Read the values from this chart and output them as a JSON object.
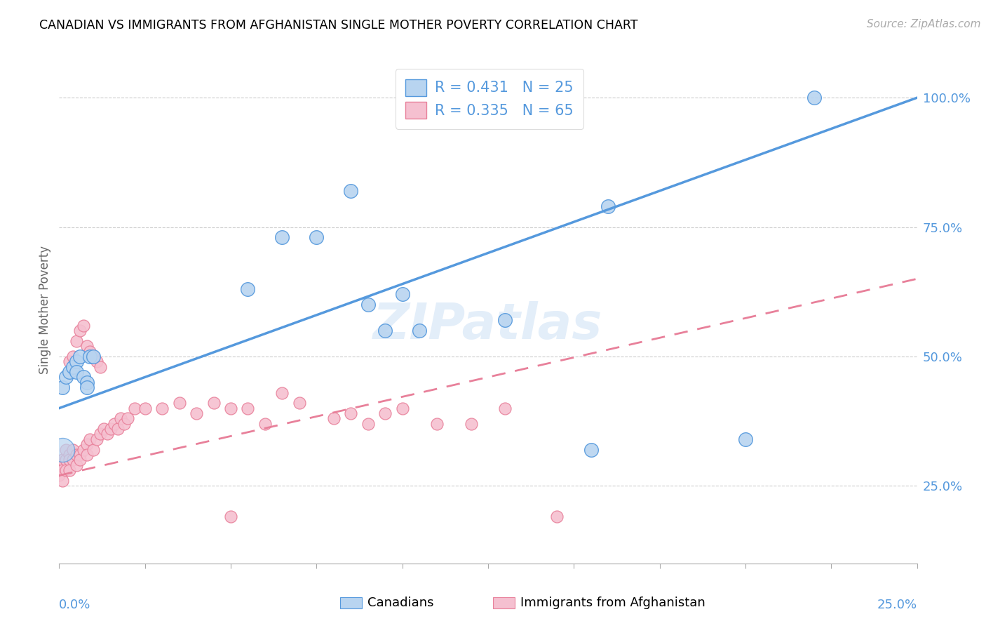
{
  "title": "CANADIAN VS IMMIGRANTS FROM AFGHANISTAN SINGLE MOTHER POVERTY CORRELATION CHART",
  "source": "Source: ZipAtlas.com",
  "ylabel": "Single Mother Poverty",
  "right_yticks": [
    "25.0%",
    "50.0%",
    "75.0%",
    "100.0%"
  ],
  "right_ytick_vals": [
    0.25,
    0.5,
    0.75,
    1.0
  ],
  "xmin": 0.0,
  "xmax": 0.25,
  "ymin": 0.1,
  "ymax": 1.08,
  "watermark": "ZIPatlas",
  "canadians_color": "#b8d4f0",
  "afghan_color": "#f5c0d0",
  "line_canadian_color": "#5599dd",
  "line_afghan_color": "#e8809a",
  "canadian_x": [
    0.001,
    0.002,
    0.003,
    0.004,
    0.005,
    0.006,
    0.055,
    0.065,
    0.075,
    0.085,
    0.09,
    0.095,
    0.1,
    0.105,
    0.13,
    0.155,
    0.16,
    0.2,
    0.22,
    0.005,
    0.007,
    0.008,
    0.008,
    0.009,
    0.01
  ],
  "canadian_y": [
    0.44,
    0.46,
    0.47,
    0.48,
    0.49,
    0.5,
    0.63,
    0.73,
    0.73,
    0.82,
    0.6,
    0.55,
    0.62,
    0.55,
    0.57,
    0.32,
    0.79,
    0.34,
    1.0,
    0.47,
    0.46,
    0.45,
    0.44,
    0.5,
    0.5
  ],
  "afghan_x": [
    0.0,
    0.0,
    0.001,
    0.001,
    0.001,
    0.002,
    0.002,
    0.002,
    0.003,
    0.003,
    0.003,
    0.004,
    0.004,
    0.005,
    0.005,
    0.006,
    0.006,
    0.007,
    0.008,
    0.008,
    0.009,
    0.01,
    0.011,
    0.012,
    0.013,
    0.014,
    0.015,
    0.016,
    0.017,
    0.018,
    0.019,
    0.02,
    0.022,
    0.025,
    0.03,
    0.035,
    0.04,
    0.045,
    0.05,
    0.055,
    0.06,
    0.065,
    0.07,
    0.08,
    0.085,
    0.09,
    0.095,
    0.1,
    0.11,
    0.12,
    0.13,
    0.145,
    0.003,
    0.004,
    0.005,
    0.006,
    0.007,
    0.008,
    0.009,
    0.01,
    0.011,
    0.012,
    0.05
  ],
  "afghan_y": [
    0.29,
    0.27,
    0.3,
    0.28,
    0.26,
    0.32,
    0.3,
    0.28,
    0.31,
    0.3,
    0.28,
    0.32,
    0.3,
    0.31,
    0.29,
    0.31,
    0.3,
    0.32,
    0.33,
    0.31,
    0.34,
    0.32,
    0.34,
    0.35,
    0.36,
    0.35,
    0.36,
    0.37,
    0.36,
    0.38,
    0.37,
    0.38,
    0.4,
    0.4,
    0.4,
    0.41,
    0.39,
    0.41,
    0.4,
    0.4,
    0.37,
    0.43,
    0.41,
    0.38,
    0.39,
    0.37,
    0.39,
    0.4,
    0.37,
    0.37,
    0.4,
    0.19,
    0.49,
    0.5,
    0.53,
    0.55,
    0.56,
    0.52,
    0.51,
    0.5,
    0.49,
    0.48,
    0.19
  ]
}
